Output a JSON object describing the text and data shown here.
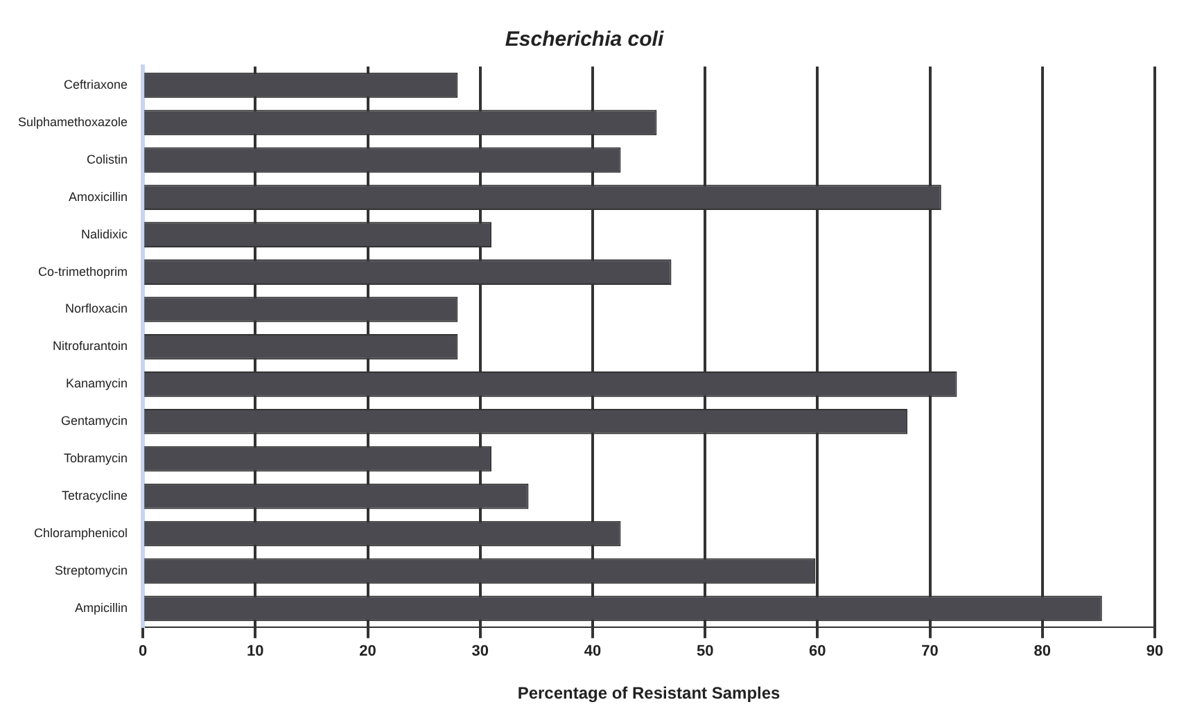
{
  "chart_data": {
    "type": "bar",
    "orientation": "horizontal",
    "title": "Escherichia coli",
    "xlabel": "Percentage of Resistant Samples",
    "categories": [
      "Ceftriaxone",
      "Sulphamethoxazole",
      "Colistin",
      "Amoxicillin",
      "Nalidixic",
      "Co-trimethoprim",
      "Norfloxacin",
      "Nitrofurantoin",
      "Kanamycin",
      "Gentamycin",
      "Tobramycin",
      "Tetracycline",
      "Chloramphenicol",
      "Streptomycin",
      "Ampicillin"
    ],
    "values": [
      28,
      45.7,
      42.5,
      71,
      31,
      47,
      28,
      28,
      72.4,
      68,
      31,
      34.3,
      42.5,
      59.8,
      85.3
    ],
    "color": "#4a4a50",
    "xlim": [
      0,
      90
    ],
    "xticks": [
      0,
      10,
      20,
      30,
      40,
      50,
      60,
      70,
      80,
      90
    ],
    "grid": "x",
    "legend": false
  }
}
